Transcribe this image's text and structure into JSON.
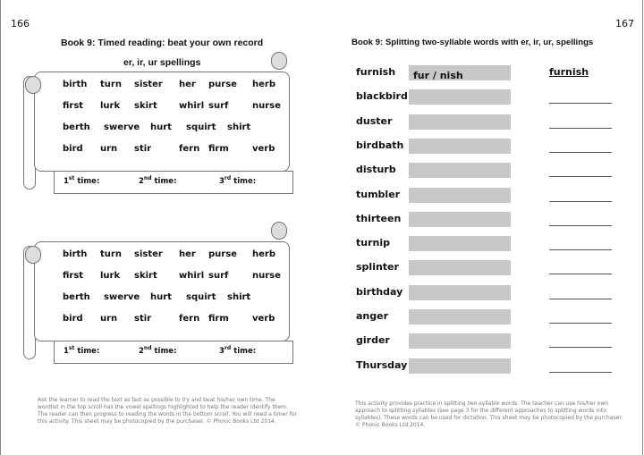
{
  "left_page": {
    "page_number": "166",
    "title": "Book 9:  Timed reading: beat your own record",
    "subtitle": "er, ir, ur spellings",
    "scrolls": [
      {
        "rows": [
          [
            "birth",
            "turn",
            "sister",
            "her",
            "purse",
            "herb"
          ],
          [
            "first",
            "lurk",
            "skirt",
            "whirl",
            "surf",
            "nurse"
          ],
          [
            "berth",
            "swerve",
            "hurt",
            "squirt",
            "shirt"
          ],
          [
            "bird",
            "urn",
            "stir",
            "fern",
            "firm",
            "verb"
          ]
        ]
      },
      {
        "rows": [
          [
            "birth",
            "turn",
            "sister",
            "her",
            "purse",
            "herb"
          ],
          [
            "first",
            "lurk",
            "skirt",
            "whirl",
            "surf",
            "nurse"
          ],
          [
            "berth",
            "swerve",
            "hurt",
            "squirt",
            "shirt"
          ],
          [
            "bird",
            "urn",
            "stir",
            "fern",
            "firm",
            "verb"
          ]
        ]
      }
    ],
    "timer": {
      "first": "1",
      "first_sup": "st",
      "second": "2",
      "second_sup": "nd",
      "third": "3",
      "third_sup": "rd",
      "label": "time:"
    },
    "note": "Ask the learner to read the text as fast as possible to try and beat his/her own time.  The wordlist in the top scroll has the vowel spellings highlighted to help the reader identify them.  The reader can then progress to reading the words in the bottom scroll.  You will need a timer for this activity.  This sheet may be photocopied by the purchaser.  © Phonic Books Ltd 2014."
  },
  "right_page": {
    "page_number": "167",
    "title": "Book 9:  Splitting two-syllable words with er, ir, ur, spellings",
    "words": [
      "furnish",
      "blackbird",
      "duster",
      "birdbath",
      "disturb",
      "tumbler",
      "thirteen",
      "turnip",
      "splinter",
      "birthday",
      "anger",
      "girder",
      "Thursday"
    ],
    "example_split": "fur / nish",
    "example_answer": "furnish",
    "note": "This activity provides practice in splitting two-syllable words.  The teacher can use his/her own approach to splitting syllables (see page 3 for the different approaches to splitting words into syllables).  These words can be used for dictation.  This sheet may be photocopied by the purchaser. © Phonic Books Ltd 2014."
  }
}
